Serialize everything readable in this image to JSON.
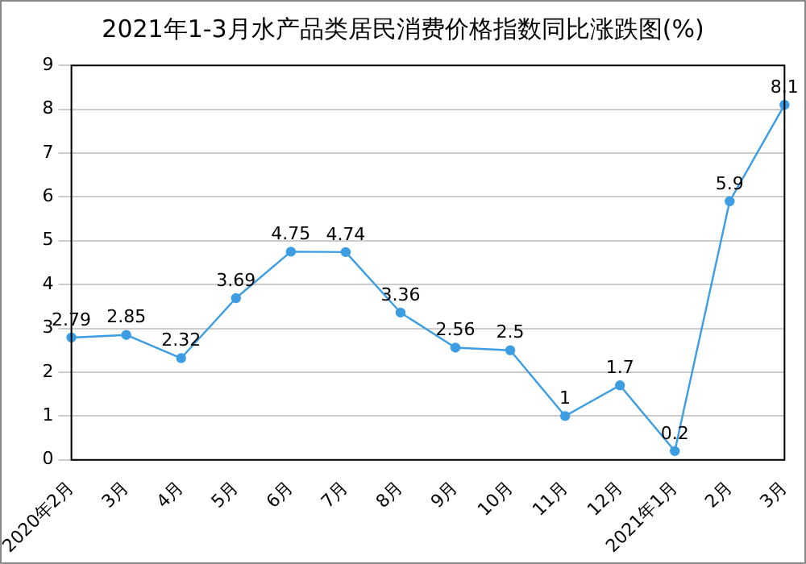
{
  "chart_data": {
    "type": "line",
    "title": "2021年1-3月水产品类居民消费价格指数同比涨跌图(%)",
    "categories": [
      "2020年2月",
      "3月",
      "4月",
      "5月",
      "6月",
      "7月",
      "8月",
      "9月",
      "10月",
      "11月",
      "12月",
      "2021年1月",
      "2月",
      "3月"
    ],
    "series": [
      {
        "color": "#3c9de3",
        "values": [
          2.79,
          2.85,
          2.32,
          3.69,
          4.75,
          4.74,
          3.36,
          2.56,
          2.5,
          1,
          1.7,
          0.2,
          5.9,
          8.1
        ]
      }
    ],
    "ylim": [
      0,
      9
    ],
    "yticks": [
      0,
      1,
      2,
      3,
      4,
      5,
      6,
      7,
      8,
      9
    ],
    "grid": "y",
    "marker": "circle",
    "line_style": "solid",
    "data_labels": true,
    "legend": false
  }
}
